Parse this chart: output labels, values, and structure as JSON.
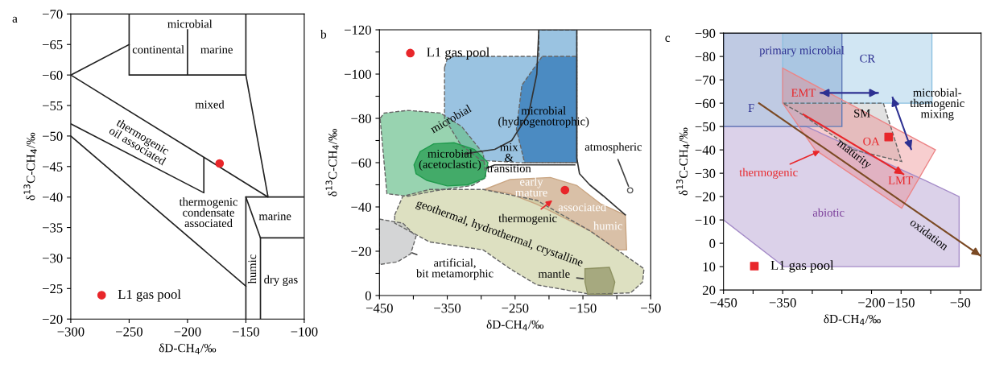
{
  "chart_data": [
    {
      "type": "scatter",
      "title": "a",
      "xlabel": "δD-CH$_{4}$/‰",
      "ylabel": "δ$^{13}$C-CH$_{4}$/‰",
      "xlim": [
        -300,
        -100
      ],
      "ylim": [
        -20,
        -70
      ],
      "xticks": [
        -300,
        -250,
        -200,
        -150,
        -100
      ],
      "yticks": [
        -70,
        -65,
        -60,
        -55,
        -50,
        -45,
        -40,
        -35,
        -30,
        -25,
        -20
      ],
      "legend": "bottom left",
      "series": [
        {
          "name": "L1 gas pool",
          "color": "#e8262a",
          "marker": "circle",
          "x": [
            -172.5
          ],
          "values": [
            -45.5
          ]
        },
        {
          "type": "line",
          "color": "#222222",
          "x": [
            -250,
            -250,
            -150,
            -150
          ],
          "values": [
            -70,
            -60,
            -60,
            -70
          ]
        },
        {
          "type": "line",
          "color": "#222222",
          "x": [
            -200,
            -200
          ],
          "values": [
            -60,
            -67.4
          ]
        },
        {
          "type": "line",
          "color": "#222222",
          "x": [
            -250,
            -300,
            -131,
            -150
          ],
          "values": [
            -65,
            -60,
            -40,
            -60
          ]
        },
        {
          "type": "line",
          "color": "#222222",
          "x": [
            -300,
            -186,
            -186
          ],
          "values": [
            -52,
            -40.7,
            -46.4
          ]
        },
        {
          "type": "line",
          "color": "#222222",
          "x": [
            -300,
            -150
          ],
          "values": [
            -50,
            -25.4
          ]
        },
        {
          "type": "line",
          "color": "#222222",
          "x": [
            -150,
            -150,
            -100
          ],
          "values": [
            -20,
            -40,
            -40
          ]
        },
        {
          "type": "line",
          "color": "#222222",
          "x": [
            -150,
            -137.5,
            -100
          ],
          "values": [
            -40,
            -33.3,
            -33.3
          ]
        },
        {
          "type": "line",
          "color": "#222222",
          "x": [
            -137.5,
            -137.5
          ],
          "values": [
            -33.3,
            -20
          ]
        }
      ],
      "annotations": [
        "microbial",
        "continental",
        "marine",
        "mixed",
        "thermogenic\noil associated",
        "thermogenic\ncondensate\nassociated",
        "marine",
        "humic",
        "dry gas"
      ]
    },
    {
      "type": "scatter",
      "title": "b",
      "xlabel": "δD-CH$_{4}$/‰",
      "ylabel": "δ$^{13}$C-CH$_{4}$/‰",
      "xlim": [
        -450,
        -50
      ],
      "ylim": [
        0,
        -120
      ],
      "xticks": [
        -450,
        {
          "value": -400,
          "label": null
        },
        -350,
        {
          "value": -300,
          "label": null
        },
        -250,
        {
          "value": -200,
          "label": null
        },
        -150,
        {
          "value": -100,
          "label": null
        },
        -50
      ],
      "yticks": [
        -120,
        {
          "value": -110,
          "label": null
        },
        -100,
        {
          "value": -90,
          "label": null
        },
        -80,
        {
          "value": -70,
          "label": null
        },
        -60,
        {
          "value": -50,
          "label": null
        },
        -40,
        {
          "value": -30,
          "label": null
        },
        -20,
        {
          "value": -10,
          "label": null
        },
        0
      ],
      "legend": "top left",
      "series": [
        {
          "type": "area",
          "color": "#6fa9d4",
          "line_style": "dashed",
          "x": [
            -354,
            -350,
            -340,
            -215,
            -215,
            -159,
            -159,
            -240,
            -300,
            -330,
            -354
          ],
          "values": [
            -103,
            -107,
            -108,
            -108,
            -120,
            -120,
            -60,
            -60,
            -61,
            -68,
            -80
          ]
        },
        {
          "type": "area",
          "color": "#2a74b5",
          "line_style": "dashed",
          "x": [
            -210,
            -159,
            -159,
            -236,
            -248,
            -240
          ],
          "values": [
            -108,
            -108,
            -60,
            -60,
            -75,
            -95
          ]
        },
        {
          "type": "area",
          "color": "#6cc08e",
          "line_style": "dashed",
          "x": [
            -449,
            -443,
            -408,
            -360,
            -329,
            -297,
            -293,
            -313,
            -368,
            -408,
            -439
          ],
          "values": [
            -80,
            -82.4,
            -83.6,
            -82.4,
            -76.4,
            -64.2,
            -53.3,
            -49.7,
            -47.3,
            -44.8,
            -46
          ]
        },
        {
          "type": "area",
          "color": "#1f9a4c",
          "x": [
            -399,
            -390,
            -370,
            -340,
            -310,
            -290,
            -295,
            -320,
            -350,
            -380,
            -396
          ],
          "values": [
            -59,
            -65,
            -68.5,
            -69,
            -66,
            -60,
            -53,
            -50,
            -49.5,
            -52,
            -55
          ]
        },
        {
          "type": "area",
          "color": "#c9a582",
          "x": [
            -295,
            -257.5,
            -198,
            -159,
            -123,
            -87.5,
            -85.6,
            -99.4,
            -139,
            -178.5,
            -218,
            -257.5
          ],
          "values": [
            -47.9,
            -52.4,
            -53.3,
            -49.7,
            -41.2,
            -36.4,
            -20.6,
            -20.6,
            -29.1,
            -35.2,
            -41.2,
            -46
          ]
        },
        {
          "type": "area",
          "color": "#cfd3a6",
          "line_style": "dashed",
          "x": [
            -427.5,
            -415.6,
            -376,
            -297,
            -218,
            -139,
            -99.4,
            -60,
            -62,
            -79.6,
            -139,
            -218,
            -257.5,
            -297,
            -376,
            -427.5
          ],
          "values": [
            -36.4,
            -44.8,
            -47.9,
            -47.9,
            -43,
            -29.1,
            -20.6,
            -12.1,
            -6.1,
            -1.2,
            -0.6,
            -4.8,
            -12.1,
            -20.6,
            -24.2,
            -32.7
          ]
        },
        {
          "type": "area",
          "color": "#c2c3c4",
          "line_style": "dashed",
          "x": [
            -450,
            -415.6,
            -396,
            -404,
            -423.5,
            -450
          ],
          "values": [
            -34.5,
            -32.7,
            -26.7,
            -18.8,
            -15.2,
            -14
          ]
        },
        {
          "type": "area",
          "color": "#8e9262",
          "x": [
            -147,
            -111,
            -103,
            -107,
            -143,
            -147
          ],
          "values": [
            -12.1,
            -12.7,
            -6.1,
            -0.6,
            -0.6,
            -6.1
          ]
        },
        {
          "type": "line",
          "color": "#333333",
          "x": [
            -159,
            -159,
            -155,
            -140,
            -120,
            -87.5
          ],
          "values": [
            -120,
            -62,
            -55,
            -50,
            -45,
            -36.4
          ]
        },
        {
          "type": "line",
          "color": "#333333",
          "x": [
            -215,
            -218,
            -230,
            -255,
            -280,
            -325
          ],
          "values": [
            -120,
            -100,
            -82,
            -70,
            -66,
            -64
          ]
        },
        {
          "type": "line",
          "color": "#333333",
          "x": [
            -292,
            -280,
            -162
          ],
          "values": [
            -57.5,
            -59,
            -59
          ]
        },
        {
          "type": "scatter",
          "color": "#555555",
          "marker": "circle",
          "x": [
            -80.4
          ],
          "values": [
            -47.5
          ]
        },
        {
          "name": "L1 gas pool",
          "color": "#e8262a",
          "marker": "circle",
          "x": [
            -176.5
          ],
          "values": [
            -47.6
          ]
        }
      ],
      "annotations": [
        "microbial",
        "microbial\n(hydrogenotrophic)",
        "mix\n&\ntransition",
        "microbial\n(acetoclastic)",
        "early\nmature",
        "associated",
        "humic",
        "thermogenic",
        "geothermal, hydrothermal, crystalline",
        "artificial,\nbit metamorphic",
        "mantle",
        {
          "text": "atmospheric",
          "x": -80.4,
          "y": -47.5
        }
      ]
    },
    {
      "type": "scatter",
      "title": "c",
      "xlabel": "δD-CH$_{4}$/‰",
      "ylabel": "δ$^{13}$C-CH$_{4}$/‰",
      "xlim": [
        -450,
        -15
      ],
      "ylim": [
        20,
        -90
      ],
      "xticks": [
        -450,
        {
          "value": -400,
          "label": null
        },
        -350,
        {
          "value": -300,
          "label": null
        },
        {
          "value": -250,
          "label": null
        },
        -200,
        -150,
        {
          "value": -100,
          "label": null
        },
        -50
      ],
      "yticks": [
        -90,
        -80,
        -70,
        -60,
        -50,
        -40,
        -30,
        -20,
        -10,
        0,
        10,
        20
      ],
      "legend": "bottom left",
      "series": [
        {
          "type": "area",
          "color": "#a58cc8",
          "x": [
            -450,
            -310,
            -110,
            -52,
            -52,
            -348,
            -450
          ],
          "values": [
            -50,
            -50,
            -27,
            -20,
            10,
            10,
            -10
          ]
        },
        {
          "type": "area",
          "color": "#5f7bb8",
          "x": [
            -450,
            -250,
            -250,
            -450
          ],
          "values": [
            -90,
            -90,
            -50,
            -50
          ]
        },
        {
          "type": "area",
          "color": "#8cc0e0",
          "x": [
            -350,
            -98,
            -98,
            -350
          ],
          "values": [
            -90,
            -90,
            -60,
            -60
          ]
        },
        {
          "type": "area",
          "color": "#b5b5b5",
          "line_style": "dashed",
          "x": [
            -350,
            -180,
            -149,
            -230,
            -322
          ],
          "values": [
            -60,
            -60,
            -35,
            -40,
            -56
          ]
        },
        {
          "type": "area",
          "color": "#ec8587",
          "x": [
            -350,
            -92,
            -149,
            -295,
            -350
          ],
          "values": [
            -75,
            -40,
            -15,
            -40,
            -60
          ]
        },
        {
          "type": "line",
          "color": "#7b4a24",
          "x": [
            -390,
            -16
          ],
          "values": [
            -60,
            5.3
          ]
        },
        {
          "type": "line",
          "color": "#e8262a",
          "x": [
            -315,
            -146
          ],
          "values": [
            -55.2,
            -29.6
          ]
        },
        {
          "type": "line",
          "color": "#2e3192",
          "x": [
            -286,
            -189
          ],
          "values": [
            -64.4,
            -64.4
          ]
        },
        {
          "type": "line",
          "color": "#2e3192",
          "x": [
            -164.4,
            -133
          ],
          "values": [
            -62.4,
            -40.3
          ]
        },
        {
          "name": "L1 gas pool",
          "color": "#e8262a",
          "marker": "square",
          "x": [
            -171
          ],
          "values": [
            -45.5
          ]
        }
      ],
      "annotations": [
        "primary microbial",
        "CR",
        {
          "text": "microbial-\nthemogenic\nmixing",
          "x": -164.4,
          "y": -62.4
        },
        "EMT",
        "F",
        "SM",
        "OA",
        "maturity",
        {
          "text": "thermogenic",
          "x": -287,
          "y": -39.5
        },
        "LMT",
        "abiotic",
        "oxidation"
      ]
    }
  ]
}
